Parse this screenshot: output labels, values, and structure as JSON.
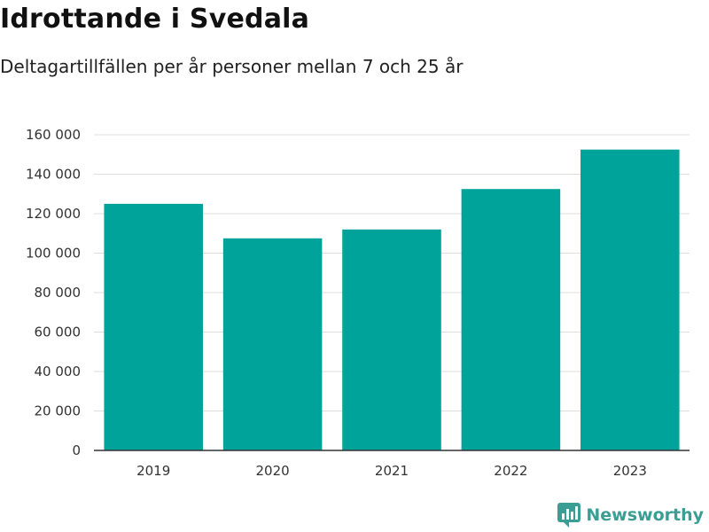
{
  "chart_data": {
    "type": "bar",
    "title": "Idrottande i Svedala",
    "subtitle": "Deltagartillfällen per år personer mellan 7 och 25 år",
    "categories": [
      "2019",
      "2020",
      "2021",
      "2022",
      "2023"
    ],
    "values": [
      125000,
      107500,
      112000,
      132500,
      152500
    ],
    "ylim": [
      0,
      160000
    ],
    "yticks": [
      0,
      20000,
      40000,
      60000,
      80000,
      100000,
      120000,
      140000,
      160000
    ],
    "ytick_labels": [
      "0",
      "20 000",
      "40 000",
      "60 000",
      "80 000",
      "100 000",
      "120 000",
      "140 000",
      "160 000"
    ],
    "xlabel": "",
    "ylabel": "",
    "grid": true,
    "bar_color": "#00a39a"
  },
  "branding": {
    "logo_text": "Newsworthy",
    "logo_color": "#3a9e94"
  }
}
